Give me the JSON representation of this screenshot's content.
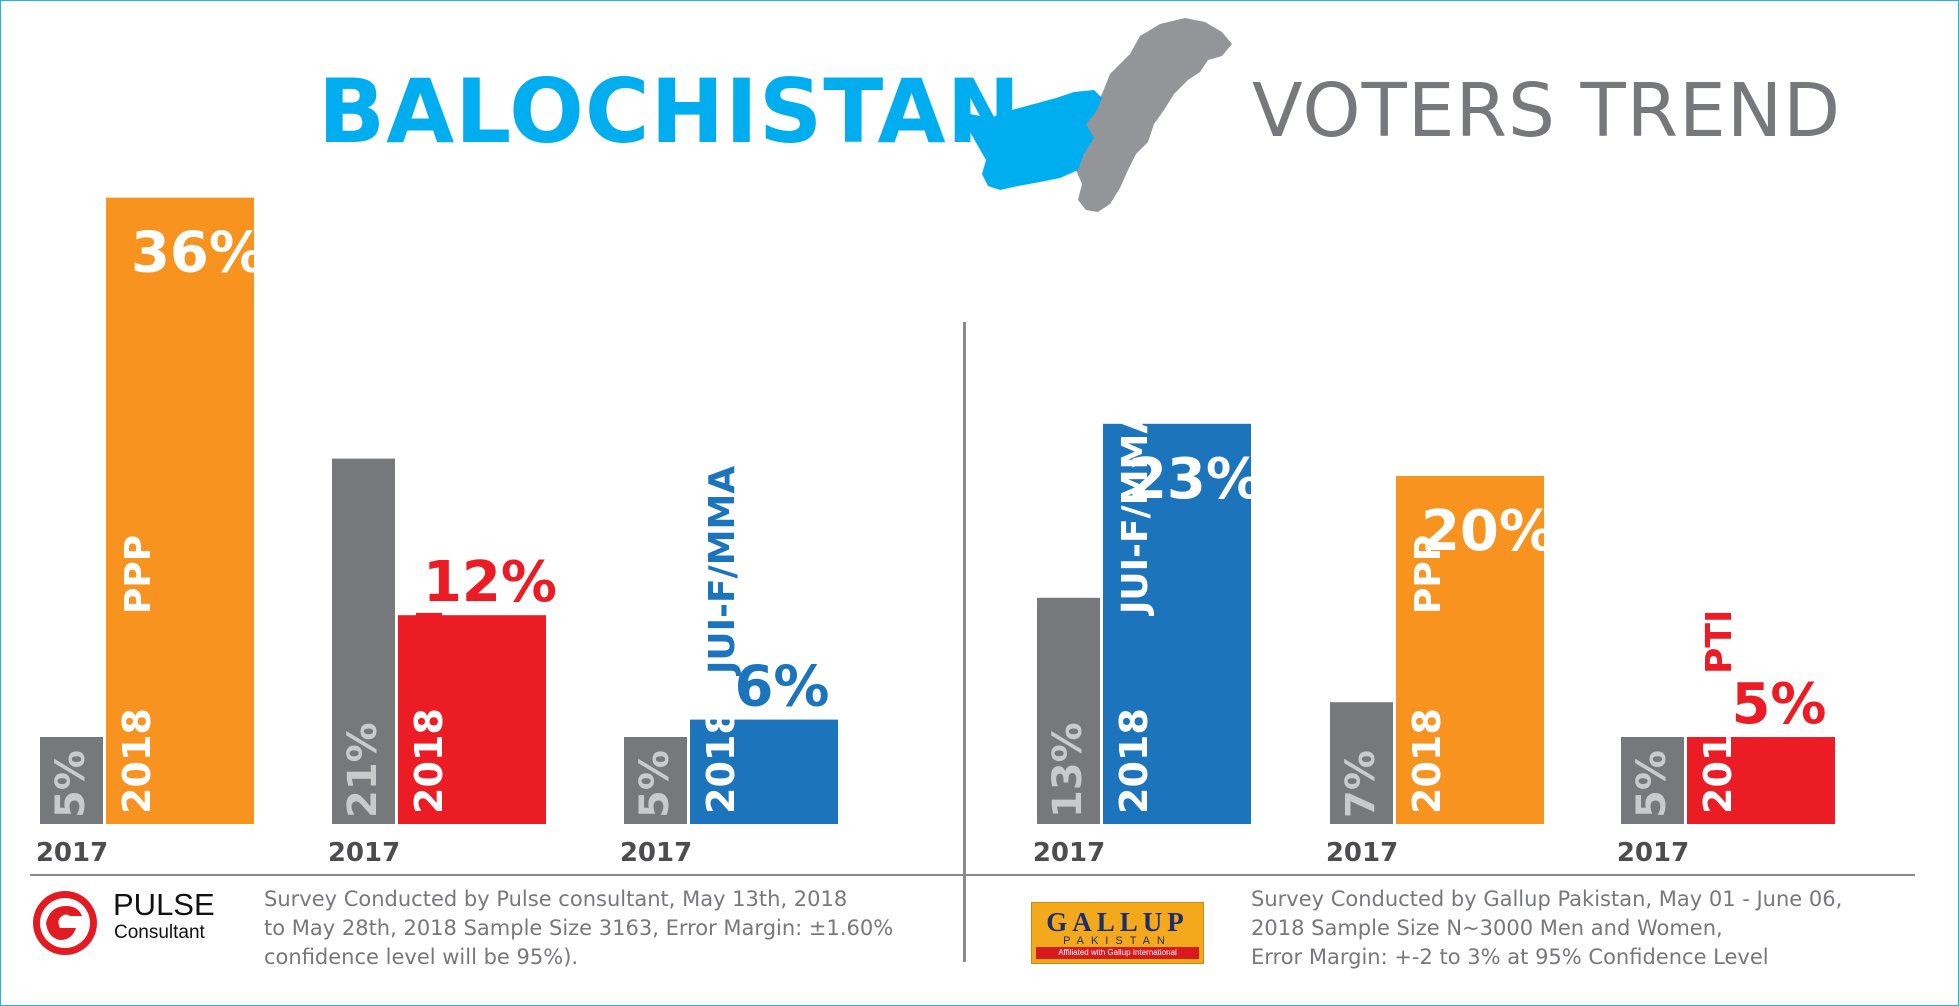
{
  "title": {
    "left": "BALOCHISTAN",
    "right": "VOTERS TREND"
  },
  "colors": {
    "PPP": "#f7931e",
    "PTI": "#ec1c24",
    "JUI-F/MMA": "#1c75bc",
    "prior_year": "#77787b",
    "title_blue": "#00aeef"
  },
  "chart_data": [
    {
      "type": "bar",
      "source": "Pulse Consultant",
      "categories": [
        "PPP",
        "PTI",
        "JUI-F/MMA"
      ],
      "years": [
        "2017",
        "2018"
      ],
      "series": [
        {
          "name": "2017",
          "values": [
            5,
            21,
            5
          ],
          "labels": [
            "5%",
            "21%",
            "5%"
          ]
        },
        {
          "name": "2018",
          "values": [
            36,
            12,
            6
          ],
          "labels": [
            "36%",
            "12%",
            "6%"
          ]
        }
      ],
      "ylim": [
        0,
        36
      ]
    },
    {
      "type": "bar",
      "source": "Gallup Pakistan",
      "categories": [
        "JUI-F/MMA",
        "PPP",
        "PTI"
      ],
      "years": [
        "2017",
        "2018"
      ],
      "series": [
        {
          "name": "2017",
          "values": [
            13,
            7,
            5
          ],
          "labels": [
            "13%",
            "7%",
            "5%"
          ]
        },
        {
          "name": "2018",
          "values": [
            23,
            20,
            5
          ],
          "labels": [
            "23%",
            "20%",
            "5%"
          ]
        }
      ],
      "ylim": [
        0,
        36
      ]
    }
  ],
  "footer": {
    "left": {
      "logo_name": "PULSE",
      "logo_sub": "Consultant",
      "text_lines": [
        "Survey Conducted by Pulse consultant, May 13th, 2018",
        "to May 28th, 2018 Sample Size 3163, Error Margin: ±1.60%",
        "confidence level will be 95%)."
      ]
    },
    "right": {
      "logo_name": "GALLUP",
      "logo_country": "PAKISTAN",
      "logo_tag": "Affiliated with Gallup International",
      "text_lines": [
        "Survey Conducted by Gallup Pakistan, May 01 - June 06,",
        "2018 Sample Size N~3000 Men and Women,",
        "Error Margin: +-2 to 3% at 95% Confidence Level"
      ]
    }
  }
}
